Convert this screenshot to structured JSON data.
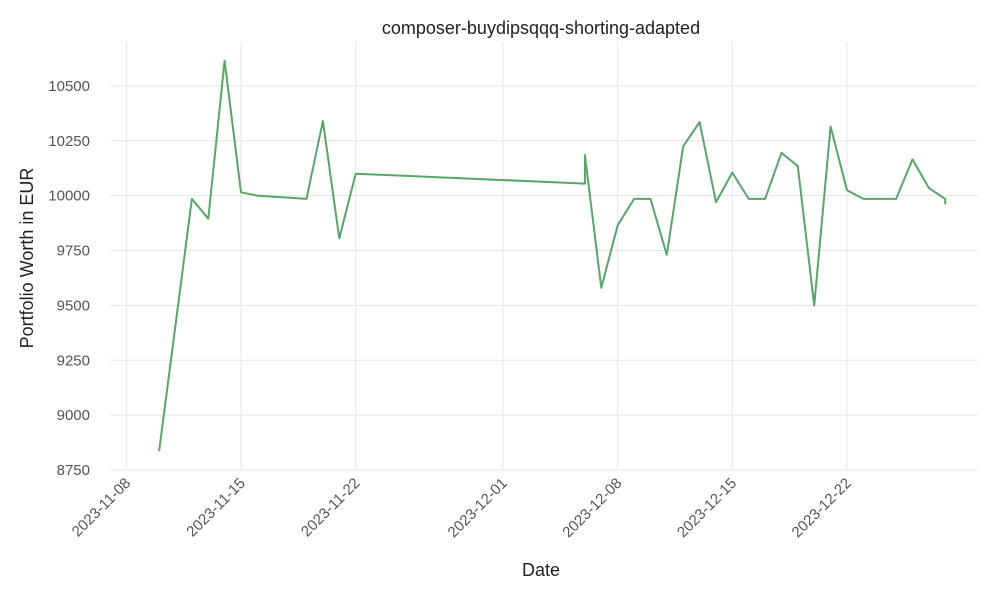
{
  "chart_data": {
    "type": "line",
    "title": "composer-buydipsqqq-shorting-adapted",
    "xlabel": "Date",
    "ylabel": "Portfolio Worth in EUR",
    "grid": true,
    "ylim": [
      8750,
      10700
    ],
    "xlim": [
      "2023-11-07",
      "2023-12-30"
    ],
    "x_ticks": [
      "2023-11-08",
      "2023-11-15",
      "2023-11-22",
      "2023-12-01",
      "2023-12-08",
      "2023-12-15",
      "2023-12-22"
    ],
    "y_ticks": [
      8750,
      9000,
      9250,
      9500,
      9750,
      10000,
      10250,
      10500
    ],
    "y_tick_labels": [
      "8750",
      "9000",
      "9250",
      "9500",
      "9750",
      "10000",
      "10250",
      "10500"
    ],
    "series": [
      {
        "color": "#55a868",
        "x": [
          "2023-11-10",
          "2023-11-12",
          "2023-11-13",
          "2023-11-14",
          "2023-11-15",
          "2023-11-16",
          "2023-11-19",
          "2023-11-20",
          "2023-11-21",
          "2023-11-22",
          "2023-12-06",
          "2023-12-06",
          "2023-12-07",
          "2023-12-08",
          "2023-12-09",
          "2023-12-10",
          "2023-12-11",
          "2023-12-12",
          "2023-12-13",
          "2023-12-14",
          "2023-12-15",
          "2023-12-16",
          "2023-12-17",
          "2023-12-18",
          "2023-12-19",
          "2023-12-20",
          "2023-12-21",
          "2023-12-22",
          "2023-12-23",
          "2023-12-25",
          "2023-12-26",
          "2023-12-27",
          "2023-12-28",
          "2023-12-28"
        ],
        "values": [
          8835,
          9985,
          9895,
          10615,
          10015,
          10000,
          9985,
          10340,
          9805,
          10100,
          10055,
          10185,
          9580,
          9865,
          9985,
          9985,
          9730,
          10225,
          10335,
          9970,
          10105,
          9985,
          9985,
          10195,
          10135,
          9500,
          10315,
          10025,
          9985,
          9985,
          10165,
          10035,
          9985,
          9960
        ]
      }
    ]
  }
}
